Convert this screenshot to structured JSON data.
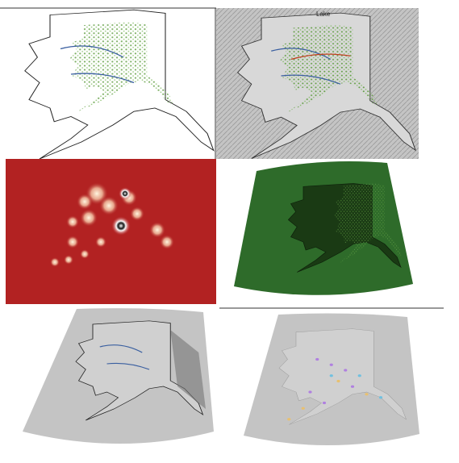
{
  "map_labels": [
    "Lake"
  ]
}
